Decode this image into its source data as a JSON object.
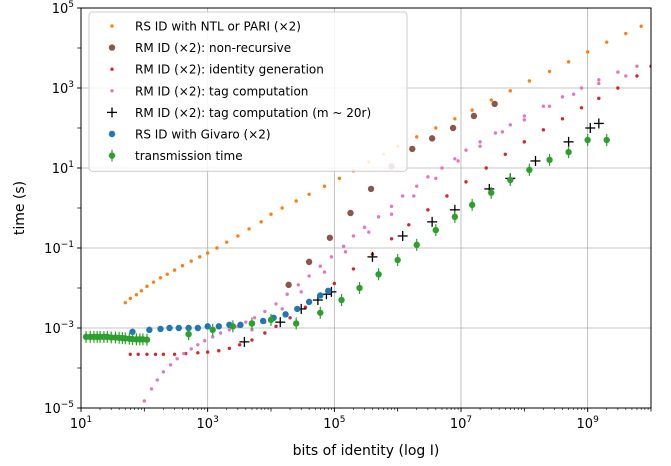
{
  "chart_data": {
    "type": "scatter",
    "xlabel": "bits of identity (log I)",
    "ylabel": "time (s)",
    "x_scale": "log",
    "y_scale": "log",
    "xlim": [
      10,
      10000000000
    ],
    "ylim": [
      1e-05,
      100000
    ],
    "x_ticks": [
      {
        "value": 10,
        "label": "10^1"
      },
      {
        "value": 1000,
        "label": "10^3"
      },
      {
        "value": 100000,
        "label": "10^5"
      },
      {
        "value": 10000000,
        "label": "10^7"
      },
      {
        "value": 1000000000,
        "label": "10^9"
      }
    ],
    "y_ticks": [
      {
        "value": 1e-05,
        "label": "10^-5"
      },
      {
        "value": 0.001,
        "label": "10^-3"
      },
      {
        "value": 0.1,
        "label": "10^-1"
      },
      {
        "value": 10,
        "label": "10^1"
      },
      {
        "value": 1000,
        "label": "10^3"
      },
      {
        "value": 100000,
        "label": "10^5"
      }
    ],
    "grid": true,
    "legend_position": "top-left",
    "series": [
      {
        "name": "RS ID with NTL or PARI (×2)",
        "color": "#ff7f0e",
        "marker": "small-dot",
        "points": [
          [
            50,
            0.0043
          ],
          [
            60,
            0.0055
          ],
          [
            75,
            0.0068
          ],
          [
            90,
            0.0085
          ],
          [
            110,
            0.011
          ],
          [
            140,
            0.014
          ],
          [
            180,
            0.018
          ],
          [
            230,
            0.022
          ],
          [
            300,
            0.028
          ],
          [
            400,
            0.036
          ],
          [
            550,
            0.047
          ],
          [
            750,
            0.06
          ],
          [
            1000,
            0.075
          ],
          [
            1400,
            0.1
          ],
          [
            2000,
            0.14
          ],
          [
            3000,
            0.2
          ],
          [
            4500,
            0.3
          ],
          [
            7000,
            0.45
          ],
          [
            10000,
            0.7
          ],
          [
            15000,
            1.0
          ],
          [
            25000,
            1.5
          ],
          [
            40000,
            2.2
          ],
          [
            70000,
            3.5
          ],
          [
            120000,
            5.5
          ],
          [
            200000,
            8.5
          ],
          [
            350000,
            14
          ],
          [
            600000,
            22
          ],
          [
            1000000,
            35
          ],
          [
            2000000,
            60
          ],
          [
            4000000,
            100
          ],
          [
            8000000,
            170
          ],
          [
            15000000,
            280
          ],
          [
            30000000,
            500
          ],
          [
            60000000,
            850
          ],
          [
            120000000,
            1500
          ],
          [
            250000000,
            2600
          ],
          [
            500000000,
            4500
          ],
          [
            1000000000,
            8000
          ],
          [
            2000000000,
            14000
          ],
          [
            4000000000,
            23000
          ],
          [
            7000000000,
            35000
          ]
        ]
      },
      {
        "name": "RM ID (×2): non-recursive",
        "color": "#8c564b",
        "marker": "dot",
        "points": [
          [
            19000,
            0.012
          ],
          [
            40000,
            0.045
          ],
          [
            85000,
            0.18
          ],
          [
            180000,
            0.75
          ],
          [
            380000,
            3.0
          ],
          [
            800000,
            11
          ],
          [
            1700000,
            30
          ],
          [
            3500000,
            55
          ],
          [
            7500000,
            100
          ],
          [
            16000000,
            200
          ],
          [
            34000000,
            400
          ]
        ]
      },
      {
        "name": "RM ID (×2): identity generation",
        "color": "#d62728",
        "marker": "small-dot",
        "points": [
          [
            60,
            0.00022
          ],
          [
            80,
            0.00022
          ],
          [
            110,
            0.00022
          ],
          [
            150,
            0.00022
          ],
          [
            200,
            0.00022
          ],
          [
            300,
            0.00022
          ],
          [
            450,
            0.00023
          ],
          [
            700,
            0.00024
          ],
          [
            1000,
            0.00025
          ],
          [
            1500,
            0.00027
          ],
          [
            2200,
            0.00031
          ],
          [
            3200,
            0.00038
          ],
          [
            5000,
            0.0005
          ],
          [
            8000,
            0.00075
          ],
          [
            12000,
            0.0011
          ],
          [
            20000,
            0.0018
          ],
          [
            35000,
            0.0033
          ],
          [
            60000,
            0.0065
          ],
          [
            100000,
            0.013
          ],
          [
            200000,
            0.03
          ],
          [
            400000,
            0.07
          ],
          [
            800000,
            0.17
          ],
          [
            1500000,
            0.38
          ],
          [
            3000000,
            0.9
          ],
          [
            6000000,
            2.0
          ],
          [
            12000000,
            4.5
          ],
          [
            25000000,
            10
          ],
          [
            50000000,
            22
          ],
          [
            100000000,
            45
          ],
          [
            200000000,
            90
          ],
          [
            400000000,
            170
          ],
          [
            800000000,
            320
          ],
          [
            1500000000,
            550
          ],
          [
            3000000000,
            1000
          ],
          [
            6000000000,
            2000
          ],
          [
            10000000000,
            3500
          ]
        ]
      },
      {
        "name": "RM ID (×2): tag computation",
        "color": "#e377c2",
        "marker": "small-dot",
        "points": [
          [
            100,
            1.5e-05
          ],
          [
            130,
            3e-05
          ],
          [
            160,
            5e-05
          ],
          [
            200,
            8e-05
          ],
          [
            260,
            0.00012
          ],
          [
            330,
            0.00017
          ],
          [
            420,
            0.00023
          ],
          [
            550,
            0.0003
          ],
          [
            700,
            0.00038
          ],
          [
            900,
            0.00048
          ],
          [
            1200,
            0.0006
          ],
          [
            1600,
            0.00075
          ],
          [
            2200,
            0.0009
          ],
          [
            3000,
            0.0011
          ],
          [
            4000,
            0.0014
          ],
          [
            5500,
            0.0018
          ],
          [
            8000,
            0.0026
          ],
          [
            12000,
            0.004
          ],
          [
            18000,
            0.007
          ],
          [
            27000,
            0.012
          ],
          [
            40000,
            0.02
          ],
          [
            60000,
            0.035
          ],
          [
            90000,
            0.06
          ],
          [
            140000,
            0.11
          ],
          [
            200000,
            0.2
          ],
          [
            300000,
            0.33
          ],
          [
            500000,
            0.6
          ],
          [
            800000,
            1.1
          ],
          [
            1200000,
            2.0
          ],
          [
            2000000,
            3.5
          ],
          [
            3000000,
            6.0
          ],
          [
            5000000,
            10
          ],
          [
            8000000,
            17
          ],
          [
            12000000,
            28
          ],
          [
            20000000,
            45
          ],
          [
            35000000,
            75
          ],
          [
            60000000,
            120
          ],
          [
            100000000,
            200
          ],
          [
            200000000,
            350
          ],
          [
            400000000,
            600
          ],
          [
            800000000,
            1000
          ],
          [
            1500000000,
            1600
          ],
          [
            3000000000,
            2500
          ],
          [
            6000000000,
            3500
          ],
          [
            5000,
            0.0009
          ],
          [
            8000,
            0.0014
          ],
          [
            15000,
            0.003
          ],
          [
            30000,
            0.008
          ],
          [
            70000,
            0.025
          ],
          [
            150000,
            0.08
          ],
          [
            350000,
            0.25
          ],
          [
            800000,
            0.7
          ],
          [
            1800000,
            2.0
          ],
          [
            4000000,
            5.5
          ],
          [
            9000000,
            15
          ],
          [
            20000000,
            35
          ],
          [
            45000000,
            80
          ],
          [
            100000000,
            160
          ],
          [
            250000000,
            350
          ],
          [
            600000000,
            700
          ],
          [
            1500000000,
            1300
          ],
          [
            4000000000,
            2000
          ]
        ]
      },
      {
        "name": "RM ID (×2): tag computation (m ~ 20r)",
        "color": "#000000",
        "marker": "plus",
        "points": [
          [
            3800,
            0.00045
          ],
          [
            14000,
            0.0014
          ],
          [
            30000,
            0.003
          ],
          [
            55000,
            0.005
          ],
          [
            75000,
            0.007
          ],
          [
            90000,
            0.008
          ],
          [
            400000,
            0.06
          ],
          [
            1200000,
            0.2
          ],
          [
            3500000,
            0.45
          ],
          [
            8000000,
            0.9
          ],
          [
            28000000,
            3.0
          ],
          [
            60000000,
            5.5
          ],
          [
            150000000,
            15
          ],
          [
            500000000,
            45
          ],
          [
            1100000000,
            100
          ],
          [
            1500000000,
            130
          ]
        ]
      },
      {
        "name": "RS ID with Givaro (×2)",
        "color": "#1f77b4",
        "marker": "dot",
        "points": [
          [
            65,
            0.0008
          ],
          [
            120,
            0.0009
          ],
          [
            180,
            0.00095
          ],
          [
            250,
            0.001
          ],
          [
            350,
            0.001
          ],
          [
            500,
            0.001
          ],
          [
            700,
            0.001
          ],
          [
            1000,
            0.0011
          ],
          [
            1500,
            0.0011
          ],
          [
            2200,
            0.0012
          ],
          [
            3300,
            0.0012
          ],
          [
            5000,
            0.0013
          ],
          [
            7500,
            0.0015
          ],
          [
            11000,
            0.0018
          ],
          [
            17000,
            0.0022
          ],
          [
            26000,
            0.003
          ],
          [
            40000,
            0.0045
          ],
          [
            60000,
            0.0065
          ],
          [
            80000,
            0.0085
          ]
        ]
      },
      {
        "name": "transmission time",
        "color": "#2ca02c",
        "marker": "dot-errorbar",
        "points": [
          [
            12,
            0.0006
          ],
          [
            14,
            0.0006
          ],
          [
            16,
            0.0006
          ],
          [
            18,
            0.0006
          ],
          [
            20,
            0.0006
          ],
          [
            23,
            0.0006
          ],
          [
            26,
            0.0006
          ],
          [
            30,
            0.00058
          ],
          [
            35,
            0.00058
          ],
          [
            40,
            0.00057
          ],
          [
            45,
            0.00056
          ],
          [
            50,
            0.00055
          ],
          [
            58,
            0.00054
          ],
          [
            65,
            0.00053
          ],
          [
            75,
            0.00052
          ],
          [
            85,
            0.00052
          ],
          [
            95,
            0.00052
          ],
          [
            110,
            0.00051
          ],
          [
            500,
            0.0007
          ],
          [
            1200,
            0.0009
          ],
          [
            2500,
            0.0011
          ],
          [
            5000,
            0.0013
          ],
          [
            10000,
            0.0016
          ],
          [
            25000,
            0.0013
          ],
          [
            60000,
            0.0024
          ],
          [
            130000,
            0.005
          ],
          [
            250000,
            0.01
          ],
          [
            500000,
            0.022
          ],
          [
            1000000,
            0.05
          ],
          [
            2000000,
            0.12
          ],
          [
            4000000,
            0.28
          ],
          [
            8000000,
            0.6
          ],
          [
            15000000,
            1.2
          ],
          [
            30000000,
            2.4
          ],
          [
            60000000,
            5.0
          ],
          [
            120000000,
            9
          ],
          [
            250000000,
            16
          ],
          [
            500000000,
            25
          ],
          [
            1000000000,
            50
          ],
          [
            2000000000,
            50
          ]
        ]
      }
    ]
  }
}
